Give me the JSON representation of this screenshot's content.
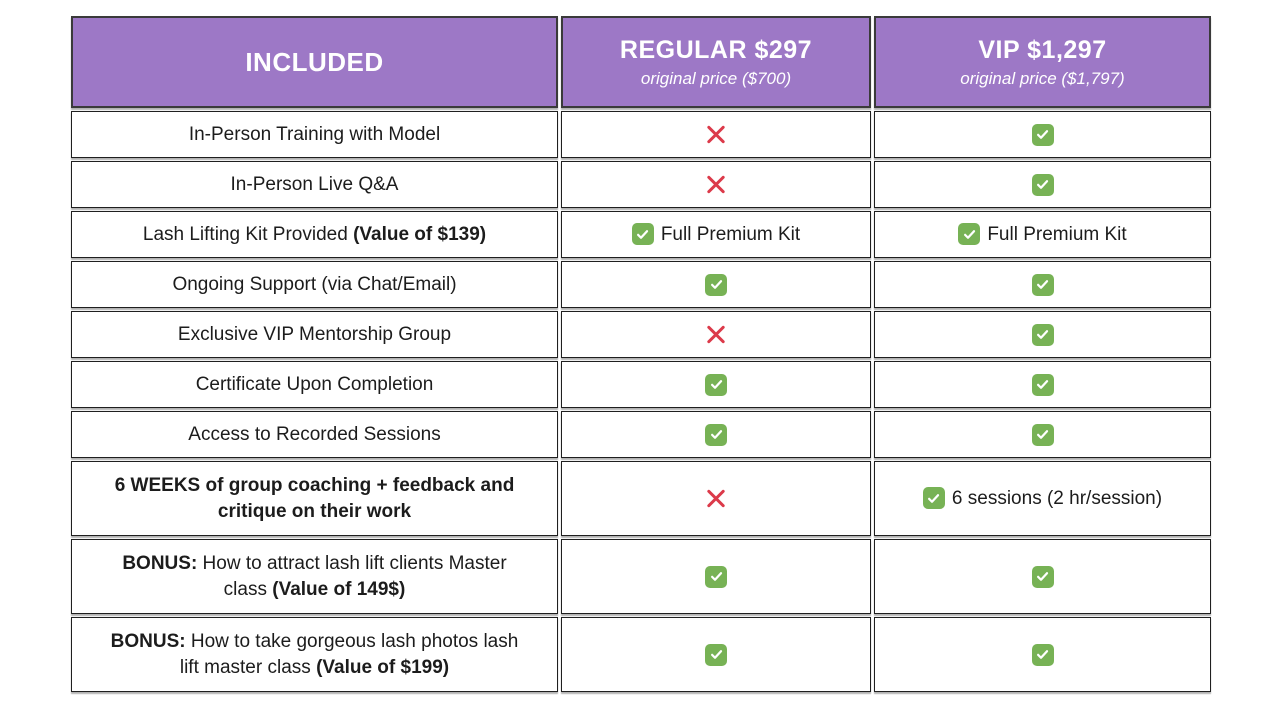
{
  "header": {
    "included_label": "INCLUDED",
    "columns": [
      {
        "title": "REGULAR $297",
        "subtitle": "original price ($700)"
      },
      {
        "title": "VIP $1,297",
        "subtitle": "original price ($1,797)"
      }
    ]
  },
  "colors": {
    "header_bg": "#9d78c6",
    "header_text": "#ffffff",
    "cross_red": "#dc3a4a",
    "check_green": "#77b255",
    "body_text": "#1c1c1c"
  },
  "icons": {
    "check": "check-icon",
    "cross": "cross-icon"
  },
  "rows": [
    {
      "feature": [
        {
          "text": "In-Person Training with Model",
          "bold": false
        }
      ],
      "regular": {
        "icon": "cross",
        "text": ""
      },
      "vip": {
        "icon": "check",
        "text": ""
      }
    },
    {
      "feature": [
        {
          "text": "In-Person Live Q&A",
          "bold": false
        }
      ],
      "regular": {
        "icon": "cross",
        "text": ""
      },
      "vip": {
        "icon": "check",
        "text": ""
      }
    },
    {
      "feature": [
        {
          "text": "Lash Lifting Kit Provided ",
          "bold": false
        },
        {
          "text": "(Value of $139)",
          "bold": true
        }
      ],
      "regular": {
        "icon": "check",
        "text": "Full Premium Kit"
      },
      "vip": {
        "icon": "check",
        "text": "Full Premium Kit"
      }
    },
    {
      "feature": [
        {
          "text": "Ongoing Support (via Chat/Email)",
          "bold": false
        }
      ],
      "regular": {
        "icon": "check",
        "text": ""
      },
      "vip": {
        "icon": "check",
        "text": ""
      }
    },
    {
      "feature": [
        {
          "text": "Exclusive VIP Mentorship Group",
          "bold": false
        }
      ],
      "regular": {
        "icon": "cross",
        "text": ""
      },
      "vip": {
        "icon": "check",
        "text": ""
      }
    },
    {
      "feature": [
        {
          "text": "Certificate Upon Completion",
          "bold": false
        }
      ],
      "regular": {
        "icon": "check",
        "text": ""
      },
      "vip": {
        "icon": "check",
        "text": ""
      }
    },
    {
      "feature": [
        {
          "text": "Access to Recorded Sessions",
          "bold": false
        }
      ],
      "regular": {
        "icon": "check",
        "text": ""
      },
      "vip": {
        "icon": "check",
        "text": ""
      }
    },
    {
      "feature": [
        {
          "text": "6 WEEKS of group coaching + feedback and critique on their work",
          "bold": true
        }
      ],
      "regular": {
        "icon": "cross",
        "text": ""
      },
      "vip": {
        "icon": "check",
        "text": "6 sessions (2 hr/session)"
      }
    },
    {
      "feature": [
        {
          "text": "BONUS:",
          "bold": true
        },
        {
          "text": " How to attract lash lift clients Master class ",
          "bold": false
        },
        {
          "text": "(Value of 149$)",
          "bold": true
        }
      ],
      "regular": {
        "icon": "check",
        "text": ""
      },
      "vip": {
        "icon": "check",
        "text": ""
      }
    },
    {
      "feature": [
        {
          "text": "BONUS:",
          "bold": true
        },
        {
          "text": "  How to take gorgeous lash photos lash lift master class ",
          "bold": false
        },
        {
          "text": "(Value of $199)",
          "bold": true
        }
      ],
      "regular": {
        "icon": "check",
        "text": ""
      },
      "vip": {
        "icon": "check",
        "text": ""
      }
    }
  ]
}
